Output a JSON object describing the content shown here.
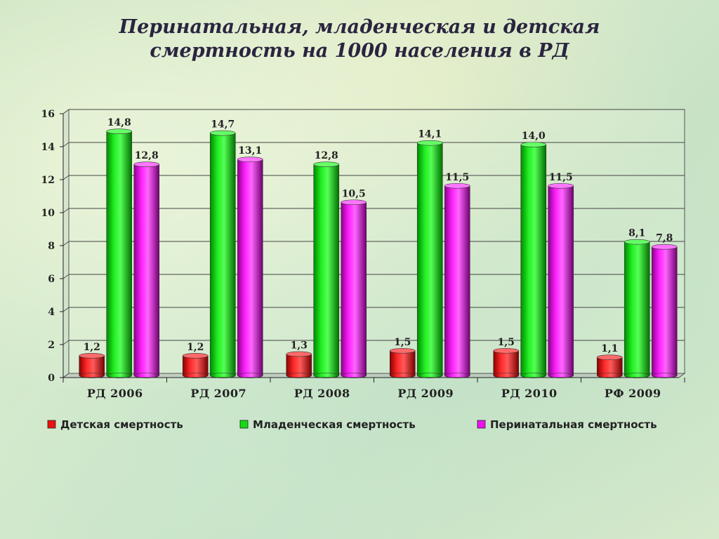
{
  "title": {
    "line1": "Перинатальная, младенческая и детская",
    "line2": "смертность на 1000 населения в РД"
  },
  "chart_data": {
    "type": "bar",
    "categories": [
      "РД 2006",
      "РД 2007",
      "РД 2008",
      "РД 2009",
      "РД 2010",
      "РФ 2009"
    ],
    "series": [
      {
        "name": "Детская смертность",
        "color": "#ee1111",
        "values": [
          1.2,
          1.2,
          1.3,
          1.5,
          1.5,
          1.1
        ],
        "labels": [
          "1,2",
          "1,2",
          "1,3",
          "1,5",
          "1,5",
          "1,1"
        ]
      },
      {
        "name": "Младенческая смертность",
        "color": "#11dd11",
        "values": [
          14.8,
          14.7,
          12.8,
          14.1,
          14.0,
          8.1
        ],
        "labels": [
          "14,8",
          "14,7",
          "12,8",
          "14,1",
          "14,0",
          "8,1"
        ]
      },
      {
        "name": "Перинатальная смертность",
        "color": "#ee11ee",
        "values": [
          12.8,
          13.1,
          10.5,
          11.5,
          11.5,
          7.8
        ],
        "labels": [
          "12,8",
          "13,1",
          "10,5",
          "11,5",
          "11,5",
          "7,8"
        ]
      }
    ],
    "ylim": [
      0,
      16
    ],
    "yticks": [
      "0",
      "2",
      "4",
      "6",
      "8",
      "10",
      "12",
      "14",
      "16"
    ],
    "grid": true,
    "legend_position": "bottom"
  }
}
